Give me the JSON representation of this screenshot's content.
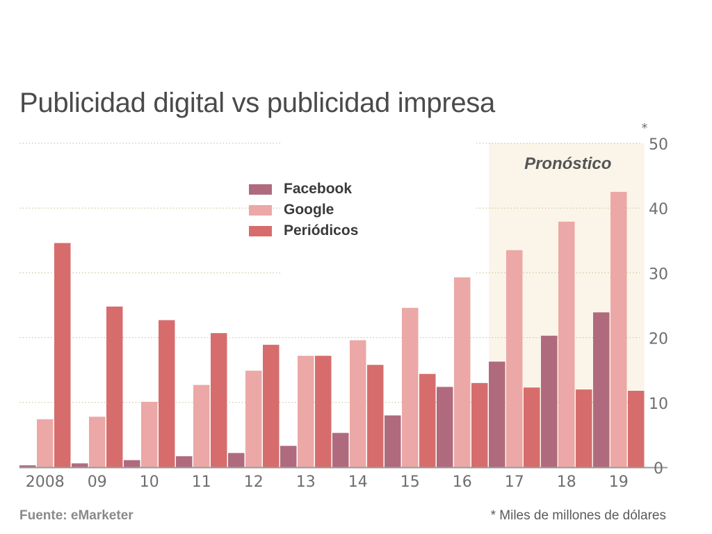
{
  "colors": {
    "facebook": "#b06a7e",
    "google": "#eba8a6",
    "periodicos": "#d66d6c",
    "forecast_bg": "#fbf5e9",
    "grid": "#c7b88a",
    "axis": "#9a9a9a",
    "tick": "#6e6e6e",
    "title": "#4a4a4a"
  },
  "legend": {
    "facebook": "Facebook",
    "google": "Google",
    "periodicos": "Periódicos"
  },
  "footer": {
    "source": "Fuente: eMarketer",
    "unit_note": "* Miles de millones de dólares"
  },
  "chart_data": {
    "type": "bar",
    "title": "Publicidad digital vs publicidad impresa",
    "categories": [
      "2008",
      "09",
      "10",
      "11",
      "12",
      "13",
      "14",
      "15",
      "16",
      "17",
      "18",
      "19"
    ],
    "series": [
      {
        "name": "Facebook",
        "values": [
          0.3,
          0.6,
          1.1,
          1.7,
          2.2,
          3.3,
          5.3,
          8.0,
          12.4,
          16.3,
          20.3,
          23.9
        ]
      },
      {
        "name": "Google",
        "values": [
          7.4,
          7.8,
          10.1,
          12.7,
          14.9,
          17.2,
          19.6,
          24.6,
          29.3,
          33.5,
          37.9,
          42.5
        ]
      },
      {
        "name": "Periódicos",
        "values": [
          34.6,
          24.8,
          22.7,
          20.7,
          18.9,
          17.2,
          15.8,
          14.4,
          13.0,
          12.3,
          12.0,
          11.8
        ]
      }
    ],
    "ylim": [
      0,
      50
    ],
    "yticks": [
      0,
      10,
      20,
      30,
      40,
      50
    ],
    "ytick_labels": [
      "0",
      "10",
      "20",
      "30",
      "40",
      "50"
    ],
    "y_unit_marker": "*",
    "y_axis_position": "right",
    "forecast": {
      "label": "Pronóstico",
      "from_category": "17",
      "to_category": "19"
    }
  }
}
